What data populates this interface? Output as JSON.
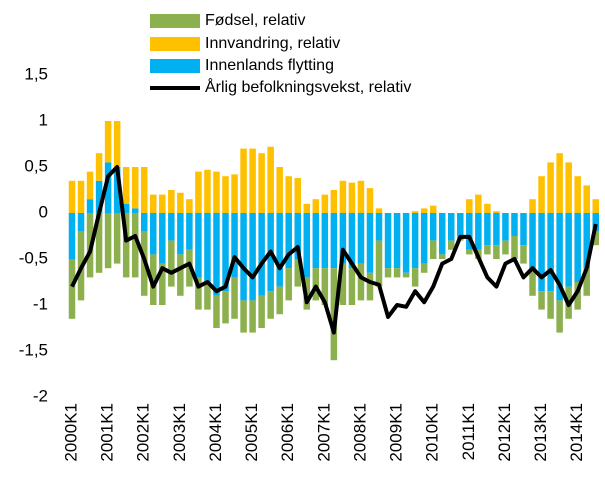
{
  "chart_data": {
    "type": "bar",
    "categories": [
      "2000K1",
      null,
      null,
      null,
      "2001K1",
      null,
      null,
      null,
      "2002K1",
      null,
      null,
      null,
      "2003K1",
      null,
      null,
      null,
      "2004K1",
      null,
      null,
      null,
      "2005K1",
      null,
      null,
      null,
      "2006K1",
      null,
      null,
      null,
      "2007K1",
      null,
      null,
      null,
      "2008K1",
      null,
      null,
      null,
      "2009K1",
      null,
      null,
      null,
      "2010K1",
      null,
      null,
      null,
      "2011K1",
      null,
      null,
      null,
      "2012K1",
      null,
      null,
      null,
      "2013K1",
      null,
      null,
      null,
      "2014K1",
      null,
      null
    ],
    "series": [
      {
        "name": "Fødsel, relativ",
        "color": "#8db04f",
        "type": "bar",
        "values": [
          -0.65,
          -0.75,
          -0.7,
          -0.65,
          -0.6,
          -0.55,
          -0.7,
          -0.7,
          -0.7,
          -0.55,
          -0.45,
          -0.5,
          -0.45,
          -0.4,
          -0.35,
          -0.3,
          -0.35,
          -0.35,
          -0.45,
          -0.35,
          -0.35,
          -0.35,
          -0.3,
          -0.3,
          -0.35,
          -0.3,
          -0.35,
          -0.35,
          -0.4,
          -1.0,
          -0.45,
          -0.4,
          -0.4,
          -0.3,
          -0.5,
          -0.1,
          -0.1,
          -0.05,
          -0.2,
          -0.1,
          -0.2,
          -0.05,
          -0.1,
          -0.05,
          -0.05,
          -0.1,
          -0.1,
          -0.15,
          -0.15,
          -0.25,
          -0.2,
          -0.3,
          -0.2,
          -0.3,
          -0.35,
          -0.35,
          -0.3,
          -0.3,
          -0.15
        ]
      },
      {
        "name": "Innvandring, relativ",
        "color": "#ffc000",
        "type": "bar",
        "values": [
          0.35,
          0.35,
          0.3,
          0.3,
          0.45,
          0.5,
          0.4,
          0.45,
          0.5,
          0.2,
          0.2,
          0.25,
          0.22,
          0.15,
          0.45,
          0.47,
          0.45,
          0.4,
          0.42,
          0.7,
          0.7,
          0.65,
          0.72,
          0.5,
          0.4,
          0.38,
          0.1,
          0.15,
          0.2,
          0.25,
          0.35,
          0.33,
          0.35,
          0.27,
          0.05,
          0,
          0,
          0,
          0.02,
          0.05,
          0.08,
          0,
          0,
          0,
          0.15,
          0.2,
          0.1,
          0.02,
          0,
          0,
          0,
          0.15,
          0.4,
          0.55,
          0.65,
          0.55,
          0.4,
          0.3,
          0.15
        ]
      },
      {
        "name": "Innenlands flytting",
        "color": "#00b0f0",
        "type": "bar",
        "values": [
          -0.5,
          -0.2,
          0.15,
          0.35,
          0.55,
          0.5,
          0.1,
          0.05,
          -0.2,
          -0.45,
          -0.55,
          -0.3,
          -0.45,
          -0.4,
          -0.7,
          -0.75,
          -0.9,
          -0.85,
          -0.7,
          -0.95,
          -0.95,
          -0.9,
          -0.85,
          -0.8,
          -0.6,
          -0.5,
          -0.7,
          -0.6,
          -0.6,
          -0.6,
          -0.55,
          -0.6,
          -0.55,
          -0.65,
          -0.3,
          -0.6,
          -0.6,
          -0.65,
          -0.6,
          -0.55,
          -0.3,
          -0.45,
          -0.3,
          -0.25,
          -0.4,
          -0.4,
          -0.35,
          -0.35,
          -0.3,
          -0.25,
          -0.35,
          -0.6,
          -0.85,
          -0.85,
          -0.95,
          -0.8,
          -0.75,
          -0.6,
          -0.2
        ]
      },
      {
        "name": "Årlig befolkningsvekst, relativ",
        "color": "#000000",
        "type": "line",
        "values": [
          -0.8,
          -0.6,
          -0.42,
          0.0,
          0.4,
          0.5,
          -0.3,
          -0.25,
          -0.5,
          -0.8,
          -0.6,
          -0.65,
          -0.6,
          -0.55,
          -0.8,
          -0.75,
          -0.85,
          -0.8,
          -0.48,
          -0.6,
          -0.7,
          -0.55,
          -0.42,
          -0.6,
          -0.45,
          -0.37,
          -0.97,
          -0.8,
          -0.97,
          -1.3,
          -0.4,
          -0.55,
          -0.7,
          -0.75,
          -0.78,
          -1.13,
          -1.0,
          -1.02,
          -0.85,
          -0.97,
          -0.8,
          -0.55,
          -0.5,
          -0.26,
          -0.26,
          -0.48,
          -0.7,
          -0.8,
          -0.55,
          -0.5,
          -0.7,
          -0.6,
          -0.7,
          -0.62,
          -0.78,
          -1.0,
          -0.85,
          -0.6,
          -0.12
        ]
      }
    ],
    "ylim": [
      -2,
      1.5
    ],
    "yticks": [
      {
        "value": 1.5,
        "label": "1,5"
      },
      1,
      {
        "value": 0.5,
        "label": "0,5"
      },
      0,
      {
        "value": -0.5,
        "label": "-0,5"
      },
      -1,
      {
        "value": -1.5,
        "label": "-1,5"
      },
      -2
    ]
  }
}
